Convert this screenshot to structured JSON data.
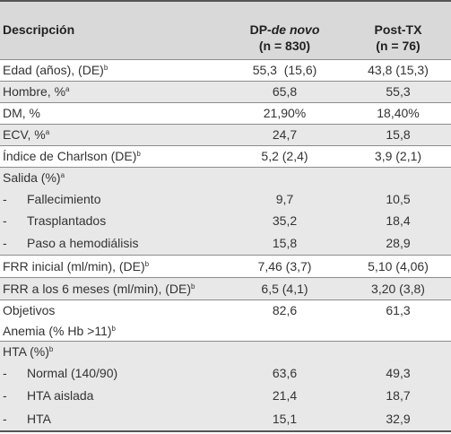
{
  "header": {
    "col1": "Descripción",
    "col2_line1_prefix": "DP-",
    "col2_line1_italic": "de novo",
    "col2_line2": "(n = 830)",
    "col3_line1": "Post-TX",
    "col3_line2": "(n = 76)"
  },
  "rows": [
    {
      "label": "Edad (años), (DE)",
      "sup": "b",
      "dp": "55,3  (15,6)",
      "tx": "43,8 (15,3)"
    },
    {
      "label": "Hombre, %",
      "sup": "a",
      "dp": "65,8",
      "tx": "55,3"
    },
    {
      "label": "DM, %",
      "sup": "",
      "dp": "21,90%",
      "tx": "18,40%"
    },
    {
      "label": "ECV, %",
      "sup": "a",
      "dp": "24,7",
      "tx": "15,8"
    },
    {
      "label": "Índice de Charlson (DE)",
      "sup": "b",
      "dp": "5,2 (2,4)",
      "tx": "3,9 (2,1)"
    },
    {
      "label": "Salida (%)",
      "sup": "a",
      "dp": "",
      "tx": ""
    },
    {
      "label": "Fallecimiento",
      "sup": "",
      "dp": "9,7",
      "tx": "10,5",
      "dash": "-"
    },
    {
      "label": "Trasplantados",
      "sup": "",
      "dp": "35,2",
      "tx": "18,4",
      "dash": "-"
    },
    {
      "label": "Paso a hemodiálisis",
      "sup": "",
      "dp": "15,8",
      "tx": "28,9",
      "dash": "-"
    },
    {
      "label": "FRR inicial (ml/min), (DE)",
      "sup": "b",
      "dp": "7,46 (3,7)",
      "tx": "5,10 (4,06)"
    },
    {
      "label": "FRR a los 6 meses (ml/min), (DE)",
      "sup": "b",
      "dp": "6,5 (4,1)",
      "tx": "3,20 (3,8)"
    },
    {
      "label": "Objetivos",
      "sup": "",
      "dp": "82,6",
      "tx": "61,3"
    },
    {
      "label": "Anemia (% Hb >11)",
      "sup": "b",
      "dp": "",
      "tx": ""
    },
    {
      "label": "HTA (%)",
      "sup": "b",
      "dp": "",
      "tx": ""
    },
    {
      "label": "Normal (140/90)",
      "sup": "",
      "dp": "63,6",
      "tx": "49,3",
      "dash": "-"
    },
    {
      "label": "HTA aislada",
      "sup": "",
      "dp": "21,4",
      "tx": "18,7",
      "dash": "-"
    },
    {
      "label": "HTA",
      "sup": "",
      "dp": "15,1",
      "tx": "32,9",
      "dash": "-"
    }
  ]
}
